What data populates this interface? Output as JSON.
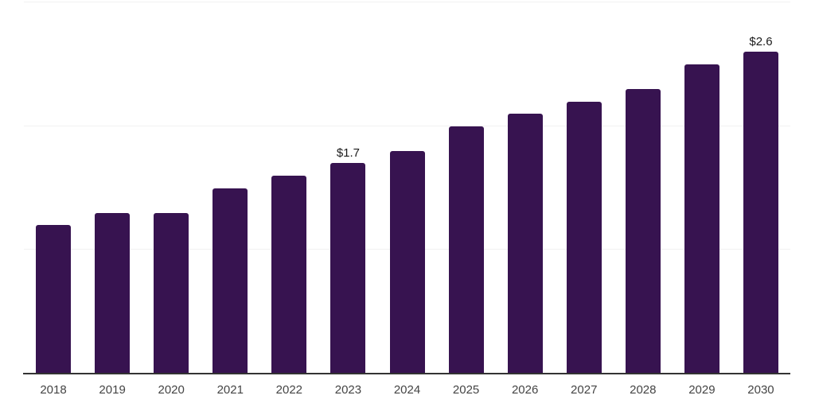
{
  "chart_data": {
    "type": "bar",
    "title": "",
    "xlabel": "",
    "ylabel": "",
    "categories": [
      "2018",
      "2019",
      "2020",
      "2021",
      "2022",
      "2023",
      "2024",
      "2025",
      "2026",
      "2027",
      "2028",
      "2029",
      "2030"
    ],
    "values": [
      1.2,
      1.3,
      1.3,
      1.5,
      1.6,
      1.7,
      1.8,
      2.0,
      2.1,
      2.2,
      2.3,
      2.5,
      2.6
    ],
    "value_prefix": "$",
    "value_labels": {
      "2023": "$1.7",
      "2030": "$2.6"
    },
    "ylim": [
      0,
      3
    ],
    "gridline_values": [
      1,
      2,
      3
    ],
    "grid": true,
    "legend": false,
    "colors": {
      "bar": "#371350",
      "gridline": "#f1f1f1",
      "axis": "#333333",
      "tick_label": "#444444",
      "value_label": "#1a1a1a"
    }
  }
}
